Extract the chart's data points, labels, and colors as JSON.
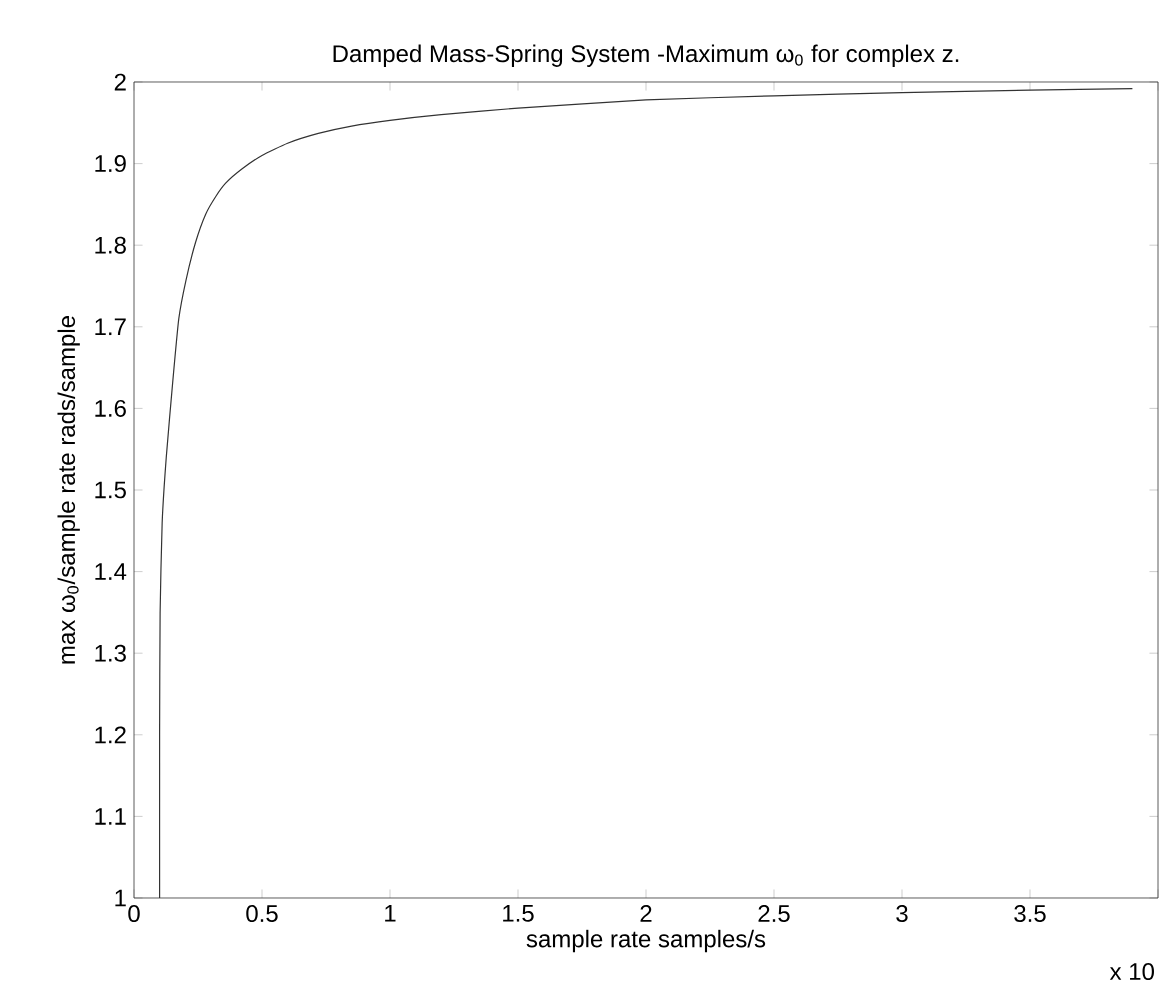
{
  "chart_data": {
    "type": "line",
    "title": "Damped Mass-Spring System -Maximum ω$_{0}$ for complex z.",
    "xlabel": "sample rate  samples/s",
    "ylabel": "max ω$_{0}$/sample rate  rads/sample",
    "annotations": [
      "x 10"
    ],
    "x": [
      0.1,
      0.1,
      0.102,
      0.11,
      0.126,
      0.152,
      0.175,
      0.203,
      0.24,
      0.28,
      0.32,
      0.358,
      0.42,
      0.5,
      0.6,
      0.72,
      0.85,
      1,
      1.2,
      1.5,
      2,
      2.5,
      3,
      3.5,
      3.9
    ],
    "series": [
      {
        "color": "#333333",
        "values": [
          1,
          1.2,
          1.35,
          1.46,
          1.54,
          1.635,
          1.71,
          1.757,
          1.803,
          1.838,
          1.86,
          1.876,
          1.893,
          1.91,
          1.925,
          1.937,
          1.946,
          1.953,
          1.96,
          1.968,
          1.978,
          1.983,
          1.987,
          1.99,
          1.992
        ]
      }
    ],
    "xlim": [
      0,
      4
    ],
    "ylim": [
      1,
      2
    ],
    "xticks": [
      0,
      0.5,
      1,
      1.5,
      2,
      2.5,
      3,
      3.5,
      {
        "value": 4,
        "label": null
      }
    ],
    "yticks": [
      1,
      1.1,
      1.2,
      1.3,
      1.4,
      1.5,
      1.6,
      1.7,
      1.8,
      1.9,
      2
    ],
    "grid": false,
    "marker": "none",
    "line_style": "solid"
  }
}
